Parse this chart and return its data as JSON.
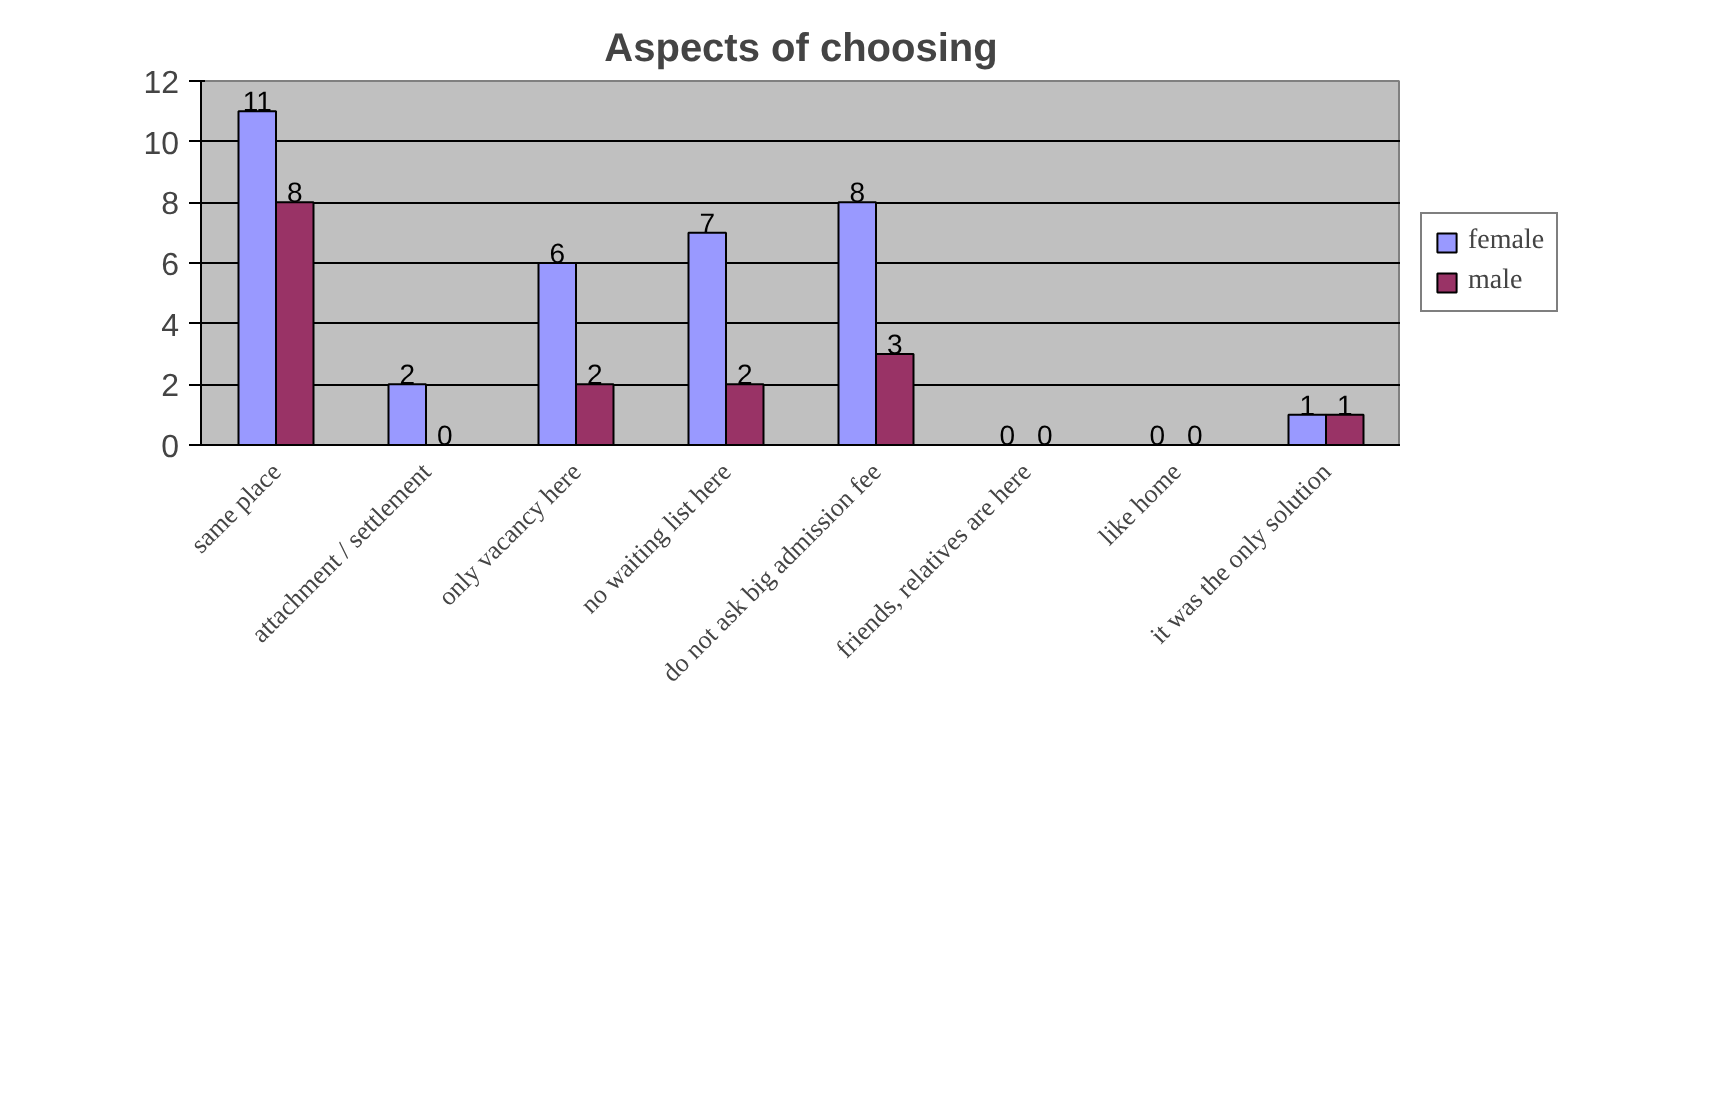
{
  "chart_data": {
    "type": "bar",
    "title": "Aspects of choosing",
    "categories": [
      "same place",
      "attachment / settlement",
      "only vacancy here",
      "no waiting list here",
      "do not ask big admission fee",
      "friends, relatives are here",
      "like home",
      "it was the only solution"
    ],
    "series": [
      {
        "name": "female",
        "color": "#9999ff",
        "values": [
          11,
          2,
          6,
          7,
          8,
          0,
          0,
          1
        ]
      },
      {
        "name": "male",
        "color": "#993366",
        "values": [
          8,
          0,
          2,
          2,
          3,
          0,
          0,
          1
        ]
      }
    ],
    "ylim": [
      0,
      12
    ],
    "yticks": [
      0,
      2,
      4,
      6,
      8,
      10,
      12
    ],
    "grid": "y",
    "legend": "right",
    "data_labels": true
  }
}
